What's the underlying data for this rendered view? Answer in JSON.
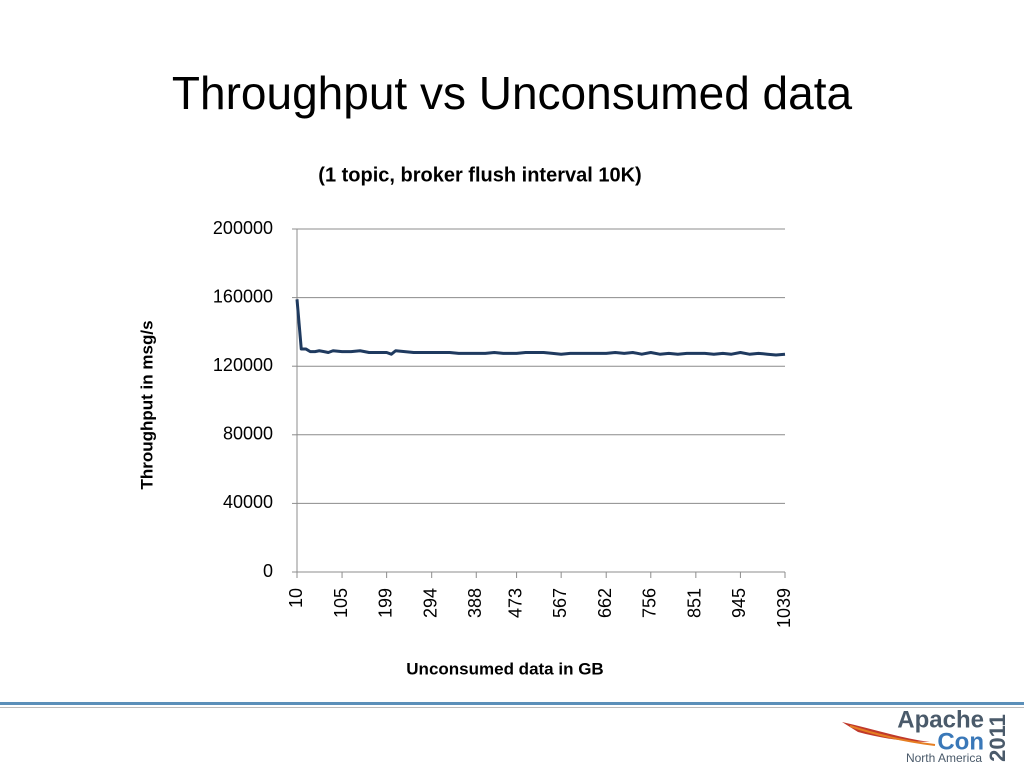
{
  "slide_title": "Throughput vs Unconsumed data",
  "chart_data": {
    "type": "line",
    "title": "(1 topic, broker flush interval 10K)",
    "x_label": "Unconsumed data in GB",
    "y_label": "Throughput in msg/s",
    "x": [
      10,
      19,
      29,
      38,
      48,
      57,
      67,
      76,
      86,
      105,
      124,
      143,
      162,
      181,
      199,
      209,
      218,
      237,
      256,
      275,
      294,
      313,
      332,
      351,
      370,
      388,
      407,
      426,
      445,
      473,
      492,
      511,
      530,
      549,
      567,
      586,
      605,
      624,
      643,
      662,
      681,
      700,
      718,
      737,
      756,
      775,
      794,
      813,
      832,
      851,
      870,
      889,
      908,
      926,
      945,
      964,
      983,
      1002,
      1020,
      1039
    ],
    "series": [
      {
        "name": "Throughput",
        "color": "#1f3a5f",
        "values": [
          159000,
          130000,
          130000,
          128500,
          128500,
          129000,
          128500,
          128000,
          129000,
          128500,
          128500,
          129000,
          128000,
          128000,
          128000,
          127000,
          129000,
          128500,
          128000,
          128000,
          128000,
          128000,
          128000,
          127500,
          127500,
          127500,
          127500,
          128000,
          127500,
          127500,
          128000,
          128000,
          128000,
          127500,
          127000,
          127500,
          127500,
          127500,
          127500,
          127500,
          128000,
          127500,
          128000,
          127000,
          128000,
          127000,
          127500,
          127000,
          127500,
          127500,
          127500,
          127000,
          127500,
          127000,
          128000,
          127000,
          127500,
          127000,
          126500,
          127000
        ]
      }
    ],
    "xlim": [
      10,
      1039
    ],
    "xticks": [
      10,
      105,
      199,
      294,
      388,
      473,
      567,
      662,
      756,
      851,
      945,
      1039
    ],
    "ylim": [
      0,
      200000
    ],
    "yticks": [
      0,
      40000,
      80000,
      120000,
      160000,
      200000
    ],
    "grid": true
  },
  "footer": {
    "logo_line1": "Apache",
    "logo_line2": "Con",
    "logo_line3": "North America",
    "year": "2011"
  }
}
